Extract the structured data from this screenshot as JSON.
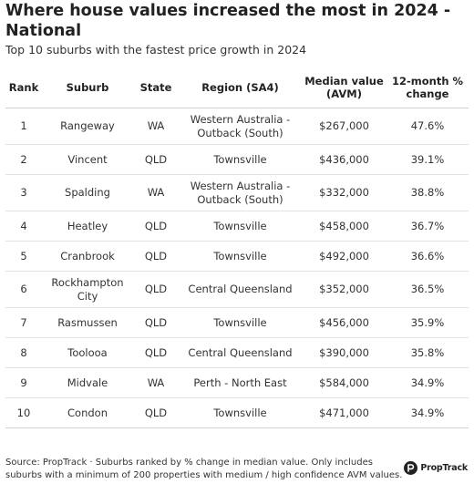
{
  "title": "Where house values increased the most in 2024 - National",
  "subtitle": "Top 10 suburbs with the fastest price growth in 2024",
  "table": {
    "headers": {
      "rank": "Rank",
      "suburb": "Suburb",
      "state": "State",
      "region": "Region (SA4)",
      "median": "Median value (AVM)",
      "change": "12-month % change"
    },
    "rows": [
      {
        "rank": "1",
        "suburb": "Rangeway",
        "state": "WA",
        "region": "Western Australia - Outback (South)",
        "median": "$267,000",
        "change": "47.6%"
      },
      {
        "rank": "2",
        "suburb": "Vincent",
        "state": "QLD",
        "region": "Townsville",
        "median": "$436,000",
        "change": "39.1%"
      },
      {
        "rank": "3",
        "suburb": "Spalding",
        "state": "WA",
        "region": "Western Australia - Outback (South)",
        "median": "$332,000",
        "change": "38.8%"
      },
      {
        "rank": "4",
        "suburb": "Heatley",
        "state": "QLD",
        "region": "Townsville",
        "median": "$458,000",
        "change": "36.7%"
      },
      {
        "rank": "5",
        "suburb": "Cranbrook",
        "state": "QLD",
        "region": "Townsville",
        "median": "$492,000",
        "change": "36.6%"
      },
      {
        "rank": "6",
        "suburb": "Rockhampton City",
        "state": "QLD",
        "region": "Central Queensland",
        "median": "$352,000",
        "change": "36.5%"
      },
      {
        "rank": "7",
        "suburb": "Rasmussen",
        "state": "QLD",
        "region": "Townsville",
        "median": "$456,000",
        "change": "35.9%"
      },
      {
        "rank": "8",
        "suburb": "Toolooa",
        "state": "QLD",
        "region": "Central Queensland",
        "median": "$390,000",
        "change": "35.8%"
      },
      {
        "rank": "9",
        "suburb": "Midvale",
        "state": "WA",
        "region": "Perth - North East",
        "median": "$584,000",
        "change": "34.9%"
      },
      {
        "rank": "10",
        "suburb": "Condon",
        "state": "QLD",
        "region": "Townsville",
        "median": "$471,000",
        "change": "34.9%"
      }
    ]
  },
  "footer": "Source: PropTrack · Suburbs ranked by % change in median value. Only includes suburbs with a minimum of 200 properties with medium / high confidence AVM values.",
  "logo": {
    "text": "PropTrack",
    "icon": "proptrack-logo-icon"
  }
}
